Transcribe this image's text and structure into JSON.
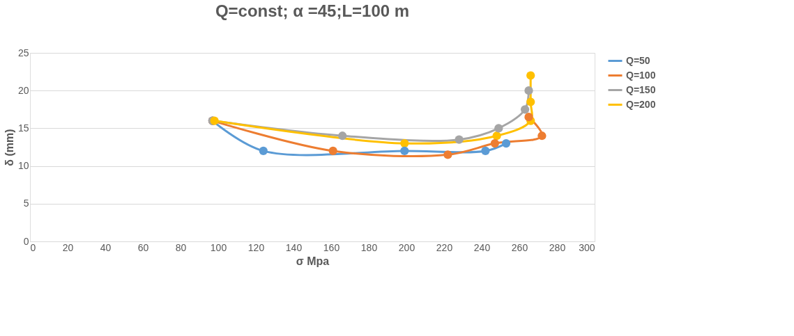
{
  "chart_data": {
    "type": "line",
    "title": "Q=const;  α =45;L=100 m",
    "xlabel": "σ Mpa",
    "ylabel": "δ (mm)",
    "xlim": [
      0,
      300
    ],
    "xticks": [
      0,
      20,
      40,
      60,
      80,
      100,
      120,
      140,
      160,
      180,
      200,
      220,
      240,
      260,
      280,
      300
    ],
    "ylim": [
      0,
      25
    ],
    "yticks": [
      0,
      5,
      10,
      15,
      20,
      25
    ],
    "grid": "y",
    "legend": "right",
    "marker": "circle",
    "line_style": "solid",
    "series": [
      {
        "name": "Q=50",
        "color": "#5b9bd5",
        "x": [
          97,
          124,
          199,
          242,
          253
        ],
        "values": [
          16,
          12,
          12,
          12,
          13
        ]
      },
      {
        "name": "Q=100",
        "color": "#ed7d31",
        "x": [
          97,
          161,
          222,
          247,
          272,
          265
        ],
        "values": [
          16,
          12,
          11.5,
          13,
          14,
          16.5
        ]
      },
      {
        "name": "Q=150",
        "color": "#a5a5a5",
        "x": [
          97,
          166,
          228,
          249,
          263,
          265
        ],
        "values": [
          16,
          14,
          13.5,
          15,
          17.5,
          20
        ]
      },
      {
        "name": "Q=200",
        "color": "#ffc000",
        "x": [
          98,
          199,
          248,
          266,
          266,
          266
        ],
        "values": [
          16,
          13,
          14,
          16,
          18.5,
          22
        ]
      }
    ]
  }
}
